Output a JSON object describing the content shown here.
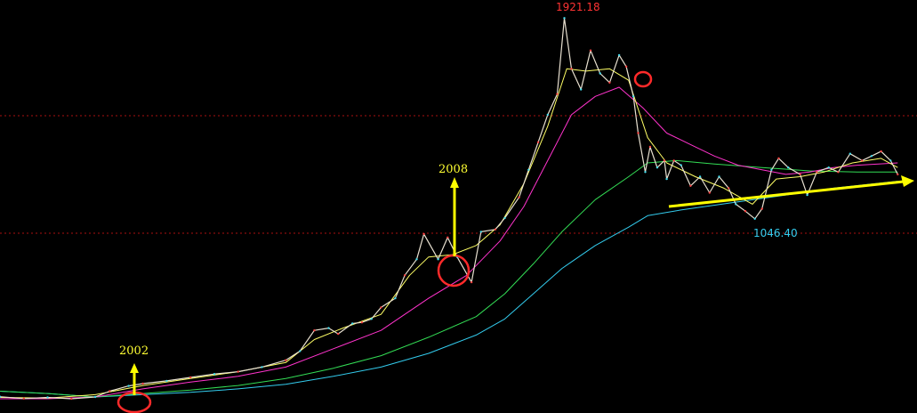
{
  "chart_data": {
    "type": "line",
    "title": "",
    "xlabel": "",
    "ylabel": "",
    "ylim": [
      200,
      2000
    ],
    "grid": "two dotted red horizontal lines",
    "series": [
      {
        "color": "#e8e0d0",
        "role": "price",
        "values": [
          [
            2000,
            271
          ],
          [
            2000.5,
            263
          ],
          [
            2001,
            268
          ],
          [
            2001.5,
            262
          ],
          [
            2002,
            270
          ],
          [
            2002.3,
            295
          ],
          [
            2002.7,
            318
          ],
          [
            2003,
            328
          ],
          [
            2003.5,
            340
          ],
          [
            2004,
            355
          ],
          [
            2004.5,
            370
          ],
          [
            2005,
            380
          ],
          [
            2005.5,
            400
          ],
          [
            2006,
            430
          ],
          [
            2006.3,
            470
          ],
          [
            2006.6,
            560
          ],
          [
            2006.9,
            570
          ],
          [
            2007.1,
            545
          ],
          [
            2007.4,
            590
          ],
          [
            2007.6,
            595
          ],
          [
            2007.8,
            610
          ],
          [
            2008,
            660
          ],
          [
            2008.3,
            700
          ],
          [
            2008.5,
            800
          ],
          [
            2008.75,
            870
          ],
          [
            2008.9,
            980
          ],
          [
            2009.2,
            870
          ],
          [
            2009.4,
            965
          ],
          [
            2009.6,
            880
          ],
          [
            2009.9,
            770
          ],
          [
            2010.1,
            990
          ],
          [
            2010.4,
            1000
          ],
          [
            2010.6,
            1050
          ],
          [
            2010.9,
            1140
          ],
          [
            2011.1,
            1260
          ],
          [
            2011.3,
            1380
          ],
          [
            2011.5,
            1500
          ],
          [
            2011.7,
            1590
          ],
          [
            2011.85,
            1921.18
          ],
          [
            2012,
            1700
          ],
          [
            2012.2,
            1610
          ],
          [
            2012.4,
            1780
          ],
          [
            2012.6,
            1680
          ],
          [
            2012.8,
            1640
          ],
          [
            2013,
            1760
          ],
          [
            2013.15,
            1710
          ],
          [
            2013.3,
            1580
          ],
          [
            2013.4,
            1420
          ],
          [
            2013.55,
            1250
          ],
          [
            2013.65,
            1360
          ],
          [
            2013.8,
            1270
          ],
          [
            2013.95,
            1300
          ],
          [
            2014,
            1220
          ],
          [
            2014.15,
            1300
          ],
          [
            2014.3,
            1280
          ],
          [
            2014.5,
            1190
          ],
          [
            2014.7,
            1230
          ],
          [
            2014.9,
            1160
          ],
          [
            2015.1,
            1230
          ],
          [
            2015.3,
            1180
          ],
          [
            2015.45,
            1110
          ],
          [
            2015.65,
            1080
          ],
          [
            2015.85,
            1046.4
          ],
          [
            2016,
            1090
          ],
          [
            2016.2,
            1260
          ],
          [
            2016.35,
            1310
          ],
          [
            2016.55,
            1270
          ],
          [
            2016.8,
            1240
          ],
          [
            2016.95,
            1150
          ],
          [
            2017.15,
            1250
          ],
          [
            2017.4,
            1270
          ],
          [
            2017.6,
            1250
          ],
          [
            2017.85,
            1330
          ],
          [
            2018.1,
            1300
          ],
          [
            2018.3,
            1320
          ],
          [
            2018.5,
            1340
          ],
          [
            2018.7,
            1300
          ],
          [
            2018.85,
            1240
          ]
        ]
      },
      {
        "color": "#ffff66",
        "role": "short moving average",
        "values": [
          [
            2000,
            268
          ],
          [
            2001,
            265
          ],
          [
            2002,
            280
          ],
          [
            2003,
            320
          ],
          [
            2004,
            350
          ],
          [
            2005,
            380
          ],
          [
            2006,
            420
          ],
          [
            2006.6,
            520
          ],
          [
            2007.2,
            570
          ],
          [
            2008,
            630
          ],
          [
            2008.6,
            800
          ],
          [
            2009,
            880
          ],
          [
            2009.5,
            890
          ],
          [
            2010,
            930
          ],
          [
            2010.5,
            1020
          ],
          [
            2011,
            1200
          ],
          [
            2011.5,
            1450
          ],
          [
            2011.9,
            1700
          ],
          [
            2012.3,
            1690
          ],
          [
            2012.8,
            1700
          ],
          [
            2013.2,
            1650
          ],
          [
            2013.6,
            1400
          ],
          [
            2014,
            1290
          ],
          [
            2014.6,
            1230
          ],
          [
            2015.2,
            1180
          ],
          [
            2015.8,
            1110
          ],
          [
            2016.3,
            1220
          ],
          [
            2016.8,
            1230
          ],
          [
            2017.3,
            1250
          ],
          [
            2017.9,
            1290
          ],
          [
            2018.5,
            1310
          ],
          [
            2018.85,
            1270
          ]
        ]
      },
      {
        "color": "#ff33cc",
        "role": "medium moving average",
        "values": [
          [
            2000,
            262
          ],
          [
            2001,
            262
          ],
          [
            2002,
            270
          ],
          [
            2003,
            305
          ],
          [
            2004,
            335
          ],
          [
            2005,
            360
          ],
          [
            2006,
            400
          ],
          [
            2007,
            480
          ],
          [
            2008,
            560
          ],
          [
            2009,
            700
          ],
          [
            2009.8,
            800
          ],
          [
            2010.5,
            950
          ],
          [
            2011,
            1100
          ],
          [
            2011.5,
            1300
          ],
          [
            2012,
            1500
          ],
          [
            2012.5,
            1580
          ],
          [
            2013,
            1620
          ],
          [
            2013.5,
            1530
          ],
          [
            2014,
            1420
          ],
          [
            2014.5,
            1370
          ],
          [
            2015,
            1320
          ],
          [
            2015.5,
            1280
          ],
          [
            2016,
            1260
          ],
          [
            2016.5,
            1240
          ],
          [
            2017,
            1250
          ],
          [
            2017.5,
            1270
          ],
          [
            2018,
            1280
          ],
          [
            2018.85,
            1290
          ]
        ]
      },
      {
        "color": "#33dd55",
        "role": "long moving average",
        "values": [
          [
            2000,
            295
          ],
          [
            2001,
            285
          ],
          [
            2002,
            270
          ],
          [
            2003,
            285
          ],
          [
            2004,
            300
          ],
          [
            2005,
            320
          ],
          [
            2006,
            350
          ],
          [
            2007,
            395
          ],
          [
            2008,
            450
          ],
          [
            2009,
            530
          ],
          [
            2010,
            620
          ],
          [
            2010.6,
            720
          ],
          [
            2011.2,
            850
          ],
          [
            2011.8,
            990
          ],
          [
            2012.5,
            1130
          ],
          [
            2013.2,
            1230
          ],
          [
            2013.6,
            1290
          ],
          [
            2014.2,
            1300
          ],
          [
            2015,
            1285
          ],
          [
            2016,
            1270
          ],
          [
            2017,
            1255
          ],
          [
            2018,
            1250
          ],
          [
            2018.85,
            1250
          ]
        ]
      },
      {
        "color": "#33ccee",
        "role": "longest moving average",
        "values": [
          [
            2000,
            295
          ],
          [
            2001,
            285
          ],
          [
            2002,
            270
          ],
          [
            2003,
            280
          ],
          [
            2004,
            290
          ],
          [
            2005,
            305
          ],
          [
            2006,
            325
          ],
          [
            2007,
            360
          ],
          [
            2008,
            400
          ],
          [
            2009,
            460
          ],
          [
            2010,
            540
          ],
          [
            2010.6,
            610
          ],
          [
            2011.2,
            720
          ],
          [
            2011.8,
            830
          ],
          [
            2012.5,
            930
          ],
          [
            2013.2,
            1010
          ],
          [
            2013.6,
            1060
          ],
          [
            2014.3,
            1085
          ],
          [
            2015.5,
            1120
          ],
          [
            2016.5,
            1150
          ],
          [
            2017.5,
            1180
          ],
          [
            2018.85,
            1210
          ]
        ]
      }
    ],
    "annotations": {
      "peak_label": "1921.18",
      "trough_label": "1046.40",
      "arrow_2002": "2002",
      "arrow_2008": "2008"
    }
  }
}
